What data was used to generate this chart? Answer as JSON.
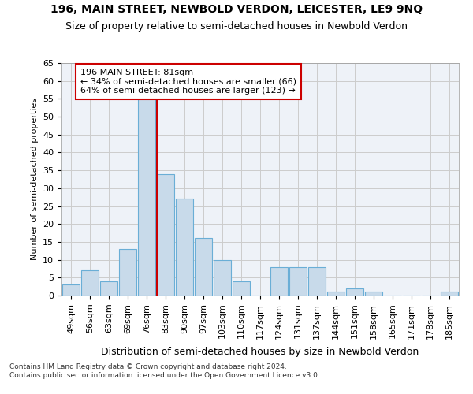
{
  "title1": "196, MAIN STREET, NEWBOLD VERDON, LEICESTER, LE9 9NQ",
  "title2": "Size of property relative to semi-detached houses in Newbold Verdon",
  "xlabel": "Distribution of semi-detached houses by size in Newbold Verdon",
  "ylabel": "Number of semi-detached properties",
  "footnote1": "Contains HM Land Registry data © Crown copyright and database right 2024.",
  "footnote2": "Contains public sector information licensed under the Open Government Licence v3.0.",
  "categories": [
    "49sqm",
    "56sqm",
    "63sqm",
    "69sqm",
    "76sqm",
    "83sqm",
    "90sqm",
    "97sqm",
    "103sqm",
    "110sqm",
    "117sqm",
    "124sqm",
    "131sqm",
    "137sqm",
    "144sqm",
    "151sqm",
    "158sqm",
    "165sqm",
    "171sqm",
    "178sqm",
    "185sqm"
  ],
  "values": [
    3,
    7,
    4,
    13,
    55,
    34,
    27,
    16,
    10,
    4,
    0,
    8,
    8,
    8,
    1,
    2,
    1,
    0,
    0,
    0,
    1
  ],
  "bar_color": "#c8daea",
  "bar_edge_color": "#6aaed6",
  "highlight_index": 5,
  "highlight_line_color": "#cc0000",
  "annotation_text": "196 MAIN STREET: 81sqm\n← 34% of semi-detached houses are smaller (66)\n64% of semi-detached houses are larger (123) →",
  "annotation_box_color": "#ffffff",
  "annotation_box_edge_color": "#cc0000",
  "ylim": [
    0,
    65
  ],
  "yticks": [
    0,
    5,
    10,
    15,
    20,
    25,
    30,
    35,
    40,
    45,
    50,
    55,
    60,
    65
  ],
  "grid_color": "#cccccc",
  "bg_color": "#eef2f8",
  "title1_fontsize": 10,
  "title2_fontsize": 9,
  "xlabel_fontsize": 9,
  "ylabel_fontsize": 8,
  "tick_fontsize": 8,
  "annotation_fontsize": 8
}
